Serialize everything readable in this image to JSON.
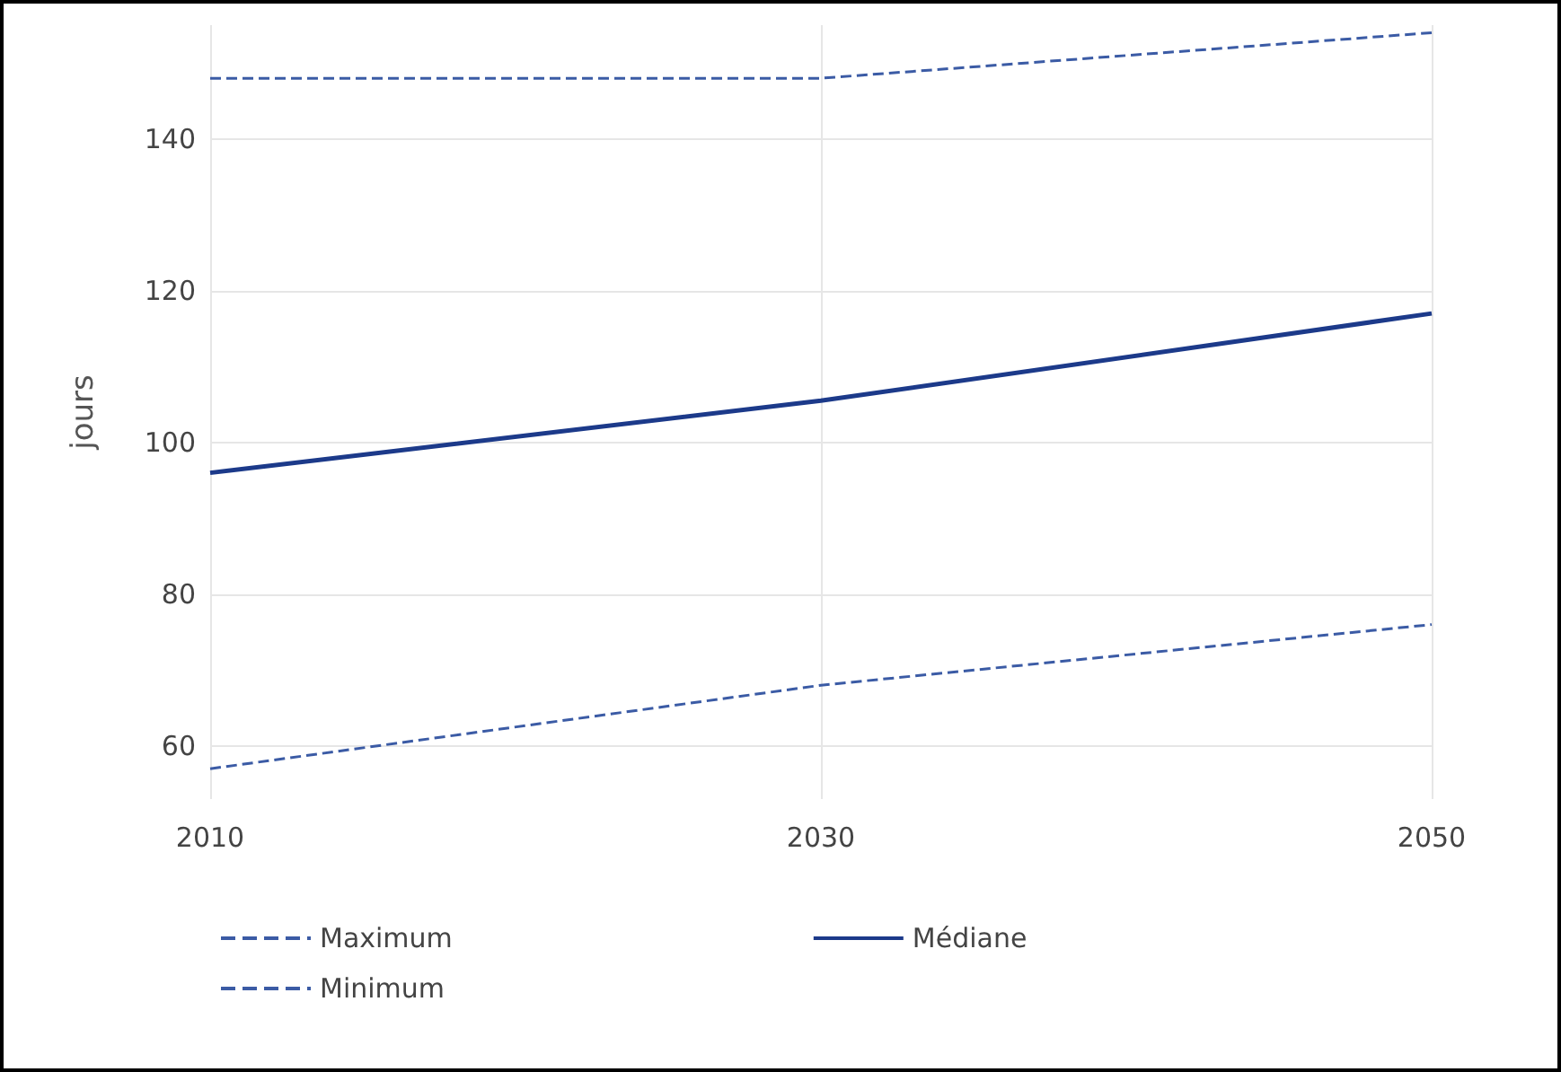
{
  "chart_data": {
    "type": "line",
    "ylabel": "jours",
    "x": [
      2010,
      2030,
      2050
    ],
    "xlim": [
      2010,
      2050
    ],
    "xticks": [
      2010,
      2030,
      2050
    ],
    "ylim": [
      53,
      155
    ],
    "yticks": [
      60,
      80,
      100,
      120,
      140
    ],
    "series": [
      {
        "name": "Maximum",
        "color": "#3b5ba5",
        "line_style": "dashed",
        "values": [
          148,
          148,
          154
        ]
      },
      {
        "name": "Médiane",
        "color": "#1c3a8a",
        "line_style": "solid",
        "values": [
          96,
          105.5,
          117
        ]
      },
      {
        "name": "Minimum",
        "color": "#3b5ba5",
        "line_style": "dashed",
        "values": [
          57,
          68,
          76
        ]
      }
    ],
    "grid": true,
    "legend": "bottom left",
    "marker": "none"
  }
}
